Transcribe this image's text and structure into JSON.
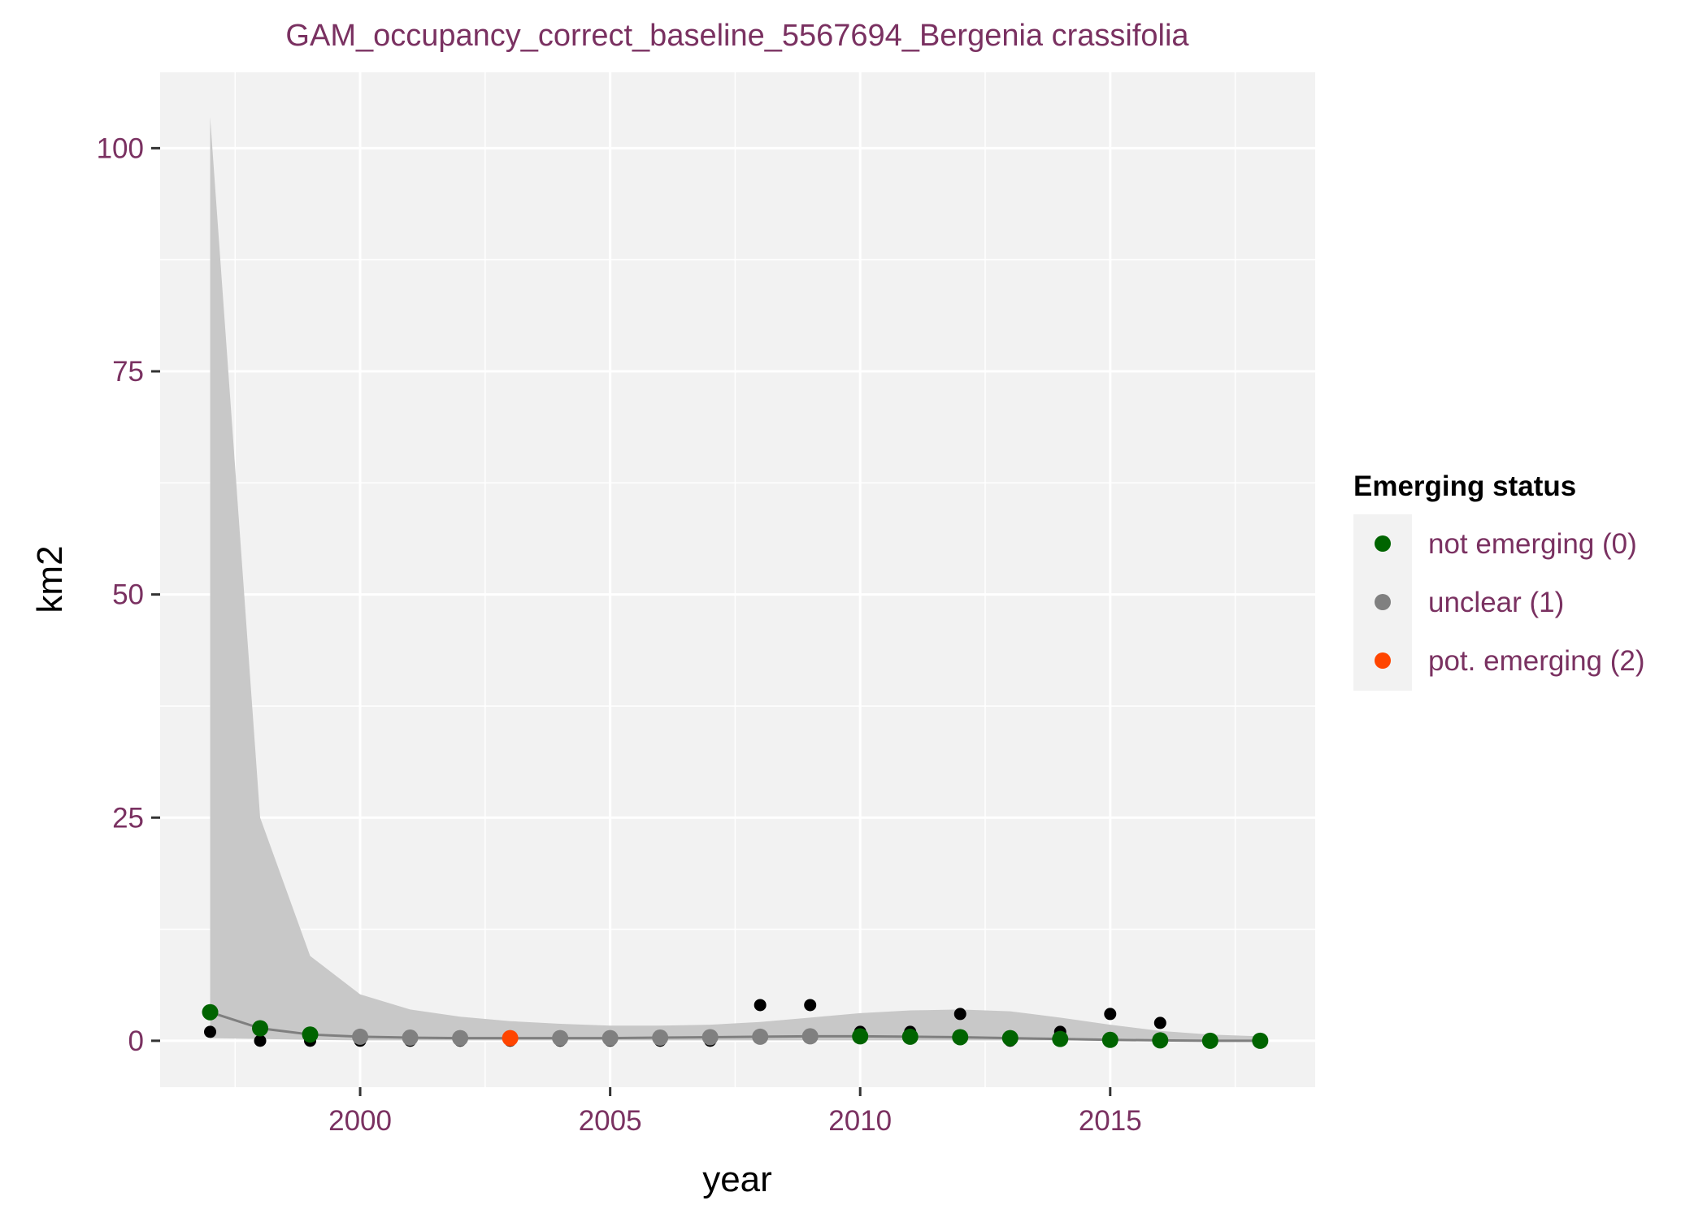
{
  "chart_data": {
    "type": "scatter",
    "title": "GAM_occupancy_correct_baseline_5567694_Bergenia crassifolia",
    "xlabel": "year",
    "ylabel": "km2",
    "xlim": [
      1996,
      2019.1
    ],
    "ylim": [
      -5.2,
      108.5
    ],
    "x_ticks": [
      2000,
      2005,
      2010,
      2015
    ],
    "y_ticks": [
      0,
      25,
      50,
      75,
      100
    ],
    "x_tick_labels": [
      "2000",
      "2005",
      "2010",
      "2015"
    ],
    "y_tick_labels": [
      "0",
      "25",
      "50",
      "75",
      "100"
    ],
    "grid": true,
    "panel_background": "#f2f2f2",
    "raw_points": {
      "color": "#000000",
      "x": [
        1997,
        1998,
        1999,
        2000,
        2001,
        2002,
        2003,
        2004,
        2005,
        2006,
        2007,
        2008,
        2009,
        2010,
        2011,
        2012,
        2013,
        2014,
        2015,
        2016,
        2017,
        2018
      ],
      "y": [
        1,
        0,
        0,
        0,
        0,
        0,
        0,
        0,
        0,
        0,
        0,
        4,
        4,
        1,
        1,
        3,
        0,
        1,
        3,
        2,
        0,
        0
      ]
    },
    "smooth_line": {
      "color": "#7f7f7f",
      "x": [
        1997,
        1998,
        1999,
        2000,
        2001,
        2002,
        2003,
        2004,
        2005,
        2006,
        2007,
        2008,
        2009,
        2010,
        2011,
        2012,
        2013,
        2014,
        2015,
        2016,
        2017,
        2018
      ],
      "y": [
        3.2,
        1.4,
        0.7,
        0.45,
        0.35,
        0.3,
        0.3,
        0.3,
        0.3,
        0.35,
        0.4,
        0.45,
        0.5,
        0.5,
        0.45,
        0.4,
        0.3,
        0.2,
        0.1,
        0.05,
        0.0,
        0.0
      ]
    },
    "confidence_band": {
      "color": "#c8c8c8",
      "x": [
        1997,
        1998,
        1999,
        2000,
        2001,
        2002,
        2003,
        2004,
        2005,
        2006,
        2007,
        2008,
        2009,
        2010,
        2011,
        2012,
        2013,
        2014,
        2015,
        2016,
        2017,
        2018
      ],
      "lower": [
        0.3,
        0.2,
        0.1,
        0.05,
        0.05,
        0.05,
        0.05,
        0.05,
        0.05,
        0.05,
        0.05,
        0.05,
        0.05,
        0.05,
        0.05,
        0.05,
        0.05,
        0.05,
        0.0,
        0.0,
        0.0,
        0.0
      ],
      "upper": [
        103.5,
        25.0,
        9.5,
        5.2,
        3.5,
        2.7,
        2.2,
        1.9,
        1.7,
        1.7,
        1.8,
        2.1,
        2.6,
        3.1,
        3.4,
        3.5,
        3.3,
        2.6,
        1.8,
        1.1,
        0.7,
        0.5
      ]
    },
    "legend": {
      "title": "Emerging status",
      "position": "right",
      "entries": [
        {
          "label": "not emerging (0)",
          "status": 0,
          "color": "#006400"
        },
        {
          "label": "unclear (1)",
          "status": 1,
          "color": "#808080"
        },
        {
          "label": "pot. emerging (2)",
          "status": 2,
          "color": "#ff4500"
        }
      ]
    },
    "status_points": {
      "x": [
        1997,
        1998,
        1999,
        2000,
        2001,
        2002,
        2003,
        2004,
        2005,
        2006,
        2007,
        2008,
        2009,
        2010,
        2011,
        2012,
        2013,
        2014,
        2015,
        2016,
        2017,
        2018
      ],
      "y": [
        3.2,
        1.4,
        0.7,
        0.45,
        0.35,
        0.3,
        0.3,
        0.3,
        0.3,
        0.35,
        0.4,
        0.45,
        0.5,
        0.5,
        0.45,
        0.4,
        0.3,
        0.2,
        0.1,
        0.05,
        0.0,
        0.0
      ],
      "status": [
        0,
        0,
        0,
        1,
        1,
        1,
        2,
        1,
        1,
        1,
        1,
        1,
        1,
        0,
        0,
        0,
        0,
        0,
        0,
        0,
        0,
        0
      ]
    }
  }
}
